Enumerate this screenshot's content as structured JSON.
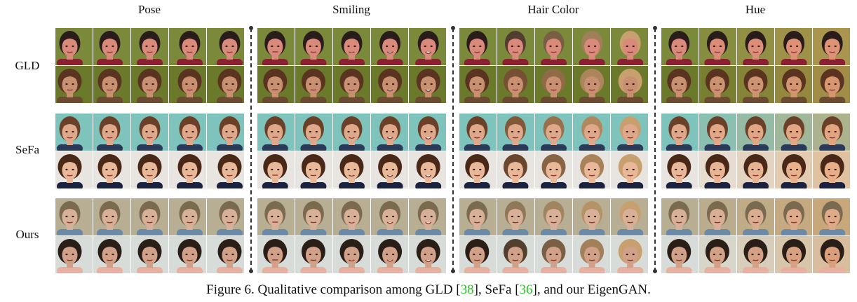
{
  "columns": [
    "Pose",
    "Smiling",
    "Hair Color",
    "Hue"
  ],
  "rows": [
    "GLD",
    "SeFa",
    "Ours"
  ],
  "caption": {
    "prefix": "Figure 6. Qualitative comparison among GLD [",
    "ref1": "38",
    "mid1": "], SeFa [",
    "ref2": "36",
    "suffix": "], and our EigenGAN."
  },
  "colors": {
    "citation": "#22c322",
    "separator": "#333333"
  }
}
